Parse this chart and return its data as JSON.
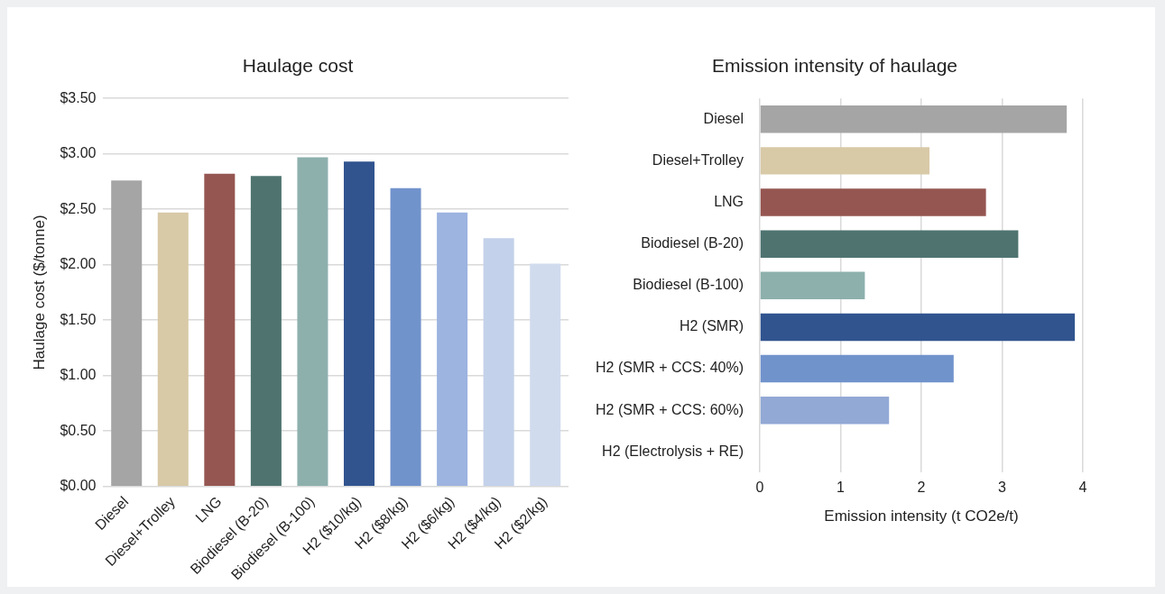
{
  "chart_data": [
    {
      "type": "bar",
      "title": "Haulage cost",
      "ylabel": "Haulage cost ($/tonne)",
      "categories": [
        "Diesel",
        "Diesel+Trolley",
        "LNG",
        "Biodiesel (B-20)",
        "Biodiesel (B-100)",
        "H2 ($10/kg)",
        "H2 ($8/kg)",
        "H2 ($6/kg)",
        "H2 ($4/kg)",
        "H2 ($2/kg)"
      ],
      "values": [
        2.76,
        2.47,
        2.82,
        2.8,
        2.97,
        2.93,
        2.69,
        2.47,
        2.24,
        2.01
      ],
      "colors": [
        "#a5a5a5",
        "#d8c9a7",
        "#955651",
        "#4f7470",
        "#8db0ad",
        "#31548f",
        "#7193cc",
        "#9db3e0",
        "#c3d1ea",
        "#d0dbee"
      ],
      "ylim": [
        0,
        3.5
      ],
      "yticks": [
        {
          "value": 0,
          "label": "$0.00"
        },
        {
          "value": 0.5,
          "label": "$0.50"
        },
        {
          "value": 1,
          "label": "$1.00"
        },
        {
          "value": 1.5,
          "label": "$1.50"
        },
        {
          "value": 2,
          "label": "$2.00"
        },
        {
          "value": 2.5,
          "label": "$2.50"
        },
        {
          "value": 3,
          "label": "$3.00"
        },
        {
          "value": 3.5,
          "label": "$3.50"
        }
      ],
      "grid": "y"
    },
    {
      "type": "bar",
      "orientation": "horizontal",
      "title": "Emission intensity of haulage",
      "xlabel": "Emission intensity (t CO2e/t)",
      "categories": [
        "Diesel",
        "Diesel+Trolley",
        "LNG",
        "Biodiesel (B-20)",
        "Biodiesel (B-100)",
        "H2 (SMR)",
        "H2 (SMR + CCS: 40%)",
        "H2 (SMR + CCS: 60%)",
        "H2 (Electrolysis + RE)"
      ],
      "values": [
        3.8,
        2.1,
        2.8,
        3.2,
        1.3,
        3.9,
        2.4,
        1.6,
        0
      ],
      "colors": [
        "#a5a5a5",
        "#d8c9a7",
        "#955651",
        "#4f7470",
        "#8db0ad",
        "#31548f",
        "#7193cc",
        "#92a9d5",
        "#c3d1ea"
      ],
      "xlim": [
        0,
        4
      ],
      "xticks": [
        0,
        1,
        2,
        3,
        4
      ],
      "grid": "x"
    }
  ]
}
